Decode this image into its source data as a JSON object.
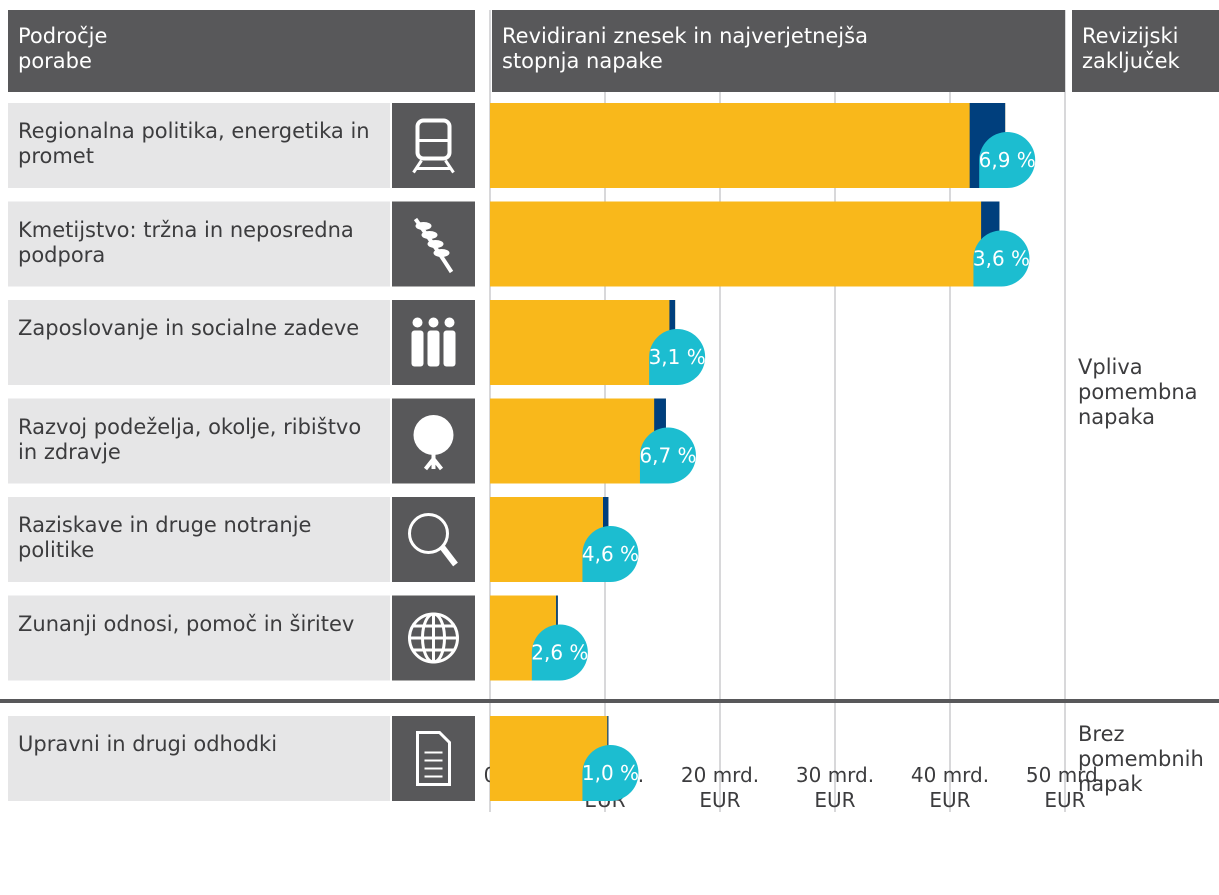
{
  "headers": {
    "area": "Področje\nporabe",
    "amount": "Revidirani znesek in najverjetnejša\nstopnja napake",
    "conclusion": "Revizijski\nzaključek"
  },
  "chart_data": {
    "type": "bar",
    "orientation": "horizontal",
    "color": "#f9b81b",
    "error_color": "#003f7d",
    "label_color": "#1cbdd0",
    "xlim": [
      0,
      50
    ],
    "xticks": [
      0,
      {
        "value": 10,
        "label": "10 mrd.\nEUR"
      },
      {
        "value": 20,
        "label": "20 mrd.\nEUR"
      },
      {
        "value": 30,
        "label": "30 mrd.\nEUR"
      },
      {
        "value": 40,
        "label": "40 mrd.\nEUR"
      },
      {
        "value": 50,
        "label": "50 mrd.\nEUR"
      }
    ],
    "groups": [
      {
        "conclusion": "Vpliva\npomembna\nnapaka",
        "categories": [
          "Regionalna politika, energetika in promet",
          "Kmetijstvo: tržna in neposredna podpora",
          "Zaposlovanje in socialne zadeve",
          "Razvoj podeželja, okolje, ribištvo in zdravje",
          "Raziskave in druge notranje politike",
          "Zunanji odnosi, pomoč in širitev"
        ],
        "values": [
          44.8,
          44.3,
          16.1,
          15.3,
          10.3,
          5.9
        ],
        "error_rates": [
          6.9,
          3.6,
          3.1,
          6.7,
          4.6,
          2.6
        ],
        "error_rate_labels": [
          "6,9 %",
          "3,6 %",
          "3,1 %",
          "6,7 %",
          "4,6 %",
          "2,6 %"
        ]
      },
      {
        "conclusion": "Brez\npomembnih\nnapak",
        "categories": [
          "Upravni in drugi odhodki"
        ],
        "values": [
          10.3
        ],
        "error_rates": [
          1.0
        ],
        "error_rate_labels": [
          "1,0 %"
        ]
      }
    ]
  }
}
